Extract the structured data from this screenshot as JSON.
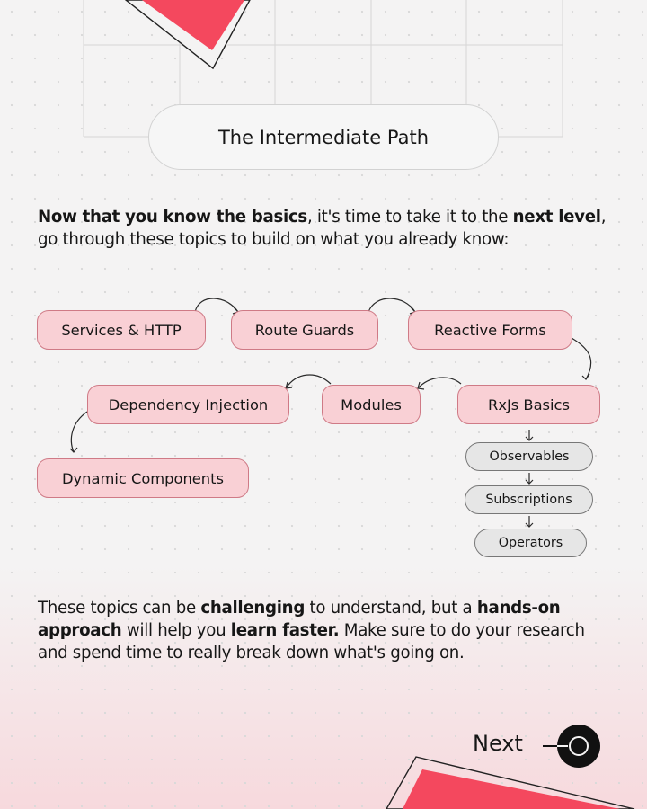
{
  "title": "The Intermediate Path",
  "intro": {
    "bold1": "Now that you know the basics",
    "text1": ", it's time to take it to the ",
    "bold2": "next level",
    "text2": ", go through these topics to build on what you already know:"
  },
  "topics": [
    "Services & HTTP",
    "Route Guards",
    "Reactive Forms",
    "RxJs Basics",
    "Modules",
    "Dependency Injection",
    "Dynamic Components"
  ],
  "rxjs_subtopics": [
    "Observables",
    "Subscriptions",
    "Operators"
  ],
  "outro": {
    "text1": "These topics can be ",
    "bold1": "challenging",
    "text2": " to understand, but a ",
    "bold2": "hands-on approach",
    "text3": " will help you ",
    "bold3": "learn faster.",
    "text4": " Make sure to do your research and spend time to really break down what's going on."
  },
  "next_label": "Next",
  "colors": {
    "accent": "#f4485e",
    "node_fill": "#f9d0d5",
    "node_border": "#cf7a86",
    "sub_fill": "#e6e6e6"
  },
  "icons": {
    "next": "arrow-circle-right-icon"
  }
}
